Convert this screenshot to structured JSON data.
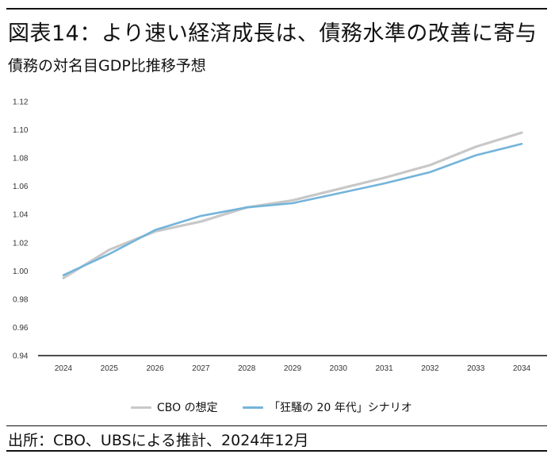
{
  "header": {
    "title": "図表14：より速い経済成長は、債務水準の改善に寄与",
    "subtitle": "債務の対名目GDP比推移予想"
  },
  "footer": {
    "source": "出所：CBO、UBSによる推計、2024年12月"
  },
  "chart_data": {
    "type": "line",
    "x": [
      2024,
      2025,
      2026,
      2027,
      2028,
      2029,
      2030,
      2031,
      2032,
      2033,
      2034
    ],
    "x_tick_labels": [
      "2024",
      "2025",
      "2026",
      "2027",
      "2028",
      "2029",
      "2030",
      "2031",
      "2032",
      "2033",
      "2034"
    ],
    "y_tick_labels": [
      "1.12",
      "1.10",
      "1.08",
      "1.06",
      "1.04",
      "1.02",
      "1.00",
      "0.98",
      "0.96",
      "0.94"
    ],
    "ylim": [
      0.94,
      1.12
    ],
    "y_ticks": [
      0.94,
      0.96,
      0.98,
      1.0,
      1.02,
      1.04,
      1.06,
      1.08,
      1.1,
      1.12
    ],
    "grid": false,
    "legend_position": "bottom-center",
    "series": [
      {
        "name": "CBO の想定",
        "color": "#c8c8c8",
        "values": [
          0.995,
          1.015,
          1.028,
          1.035,
          1.045,
          1.05,
          1.058,
          1.066,
          1.075,
          1.088,
          1.098
        ]
      },
      {
        "name": "「狂騒の 20 年代」シナリオ",
        "color": "#74b4da",
        "values": [
          0.997,
          1.012,
          1.029,
          1.039,
          1.045,
          1.048,
          1.055,
          1.062,
          1.07,
          1.082,
          1.09
        ]
      }
    ]
  }
}
